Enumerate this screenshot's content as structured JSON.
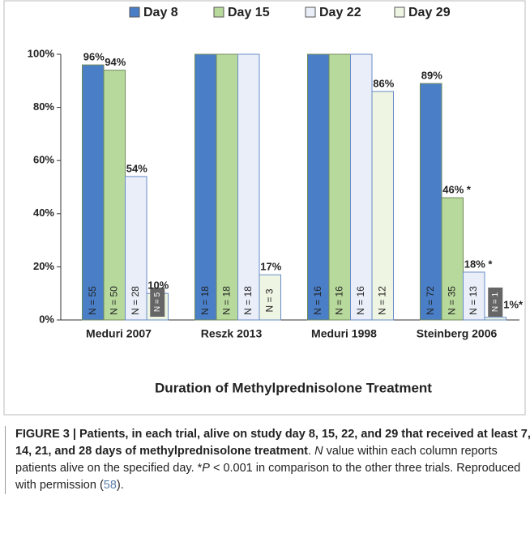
{
  "chart_data": {
    "type": "bar",
    "xlabel": "Duration of Methylprednisolone Treatment",
    "categories": [
      "Meduri 2007",
      "Reszk 2013",
      "Meduri 1998",
      "Steinberg 2006"
    ],
    "series": [
      {
        "name": "Day 8",
        "color": "#4a7fc8",
        "values": [
          96,
          100,
          100,
          89
        ],
        "value_labels": [
          "96%",
          null,
          null,
          "89%"
        ],
        "n_labels": [
          "N = 55",
          "N = 18",
          "N = 16",
          "N = 72"
        ]
      },
      {
        "name": "Day 15",
        "color": "#b8d99c",
        "values": [
          94,
          100,
          100,
          46
        ],
        "value_labels": [
          "94%",
          null,
          null,
          "46% *"
        ],
        "n_labels": [
          "N = 50",
          "N = 18",
          "N = 16",
          "N = 35"
        ]
      },
      {
        "name": "Day 22",
        "color": "#e9eef8",
        "values": [
          54,
          100,
          100,
          18
        ],
        "value_labels": [
          "54%",
          null,
          null,
          "18% *"
        ],
        "n_labels": [
          "N = 28",
          "N = 18",
          "N = 16",
          "N = 13"
        ]
      },
      {
        "name": "Day 29",
        "color": "#eef5e2",
        "values": [
          10,
          17,
          86,
          1
        ],
        "value_labels": [
          "10%",
          "17%",
          "86%",
          "1%*"
        ],
        "n_labels": [
          "N = 5",
          "N = 3",
          "N = 12",
          "N = 1"
        ]
      }
    ],
    "ylim": [
      0,
      100
    ],
    "yticks": [
      {
        "value": 0,
        "label": "0%"
      },
      {
        "value": 20,
        "label": "20%"
      },
      {
        "value": 40,
        "label": "40%"
      },
      {
        "value": 60,
        "label": "60%"
      },
      {
        "value": 80,
        "label": "80%"
      },
      {
        "value": 100,
        "label": "100%"
      }
    ],
    "grid": false,
    "legend": "top"
  },
  "caption": {
    "segments": [
      "FIGURE 3 | Patients, in each trial, alive on study day 8, 15, 22, and 29 that received at least 7, 14, 21, and 28 days of methylprednisolone treatment",
      ". ",
      "N",
      " value within each column reports patients alive on the specified day. *",
      "P",
      " < 0.001 in comparison to the other three trials. Reproduced with permission (",
      "58",
      ")."
    ]
  }
}
